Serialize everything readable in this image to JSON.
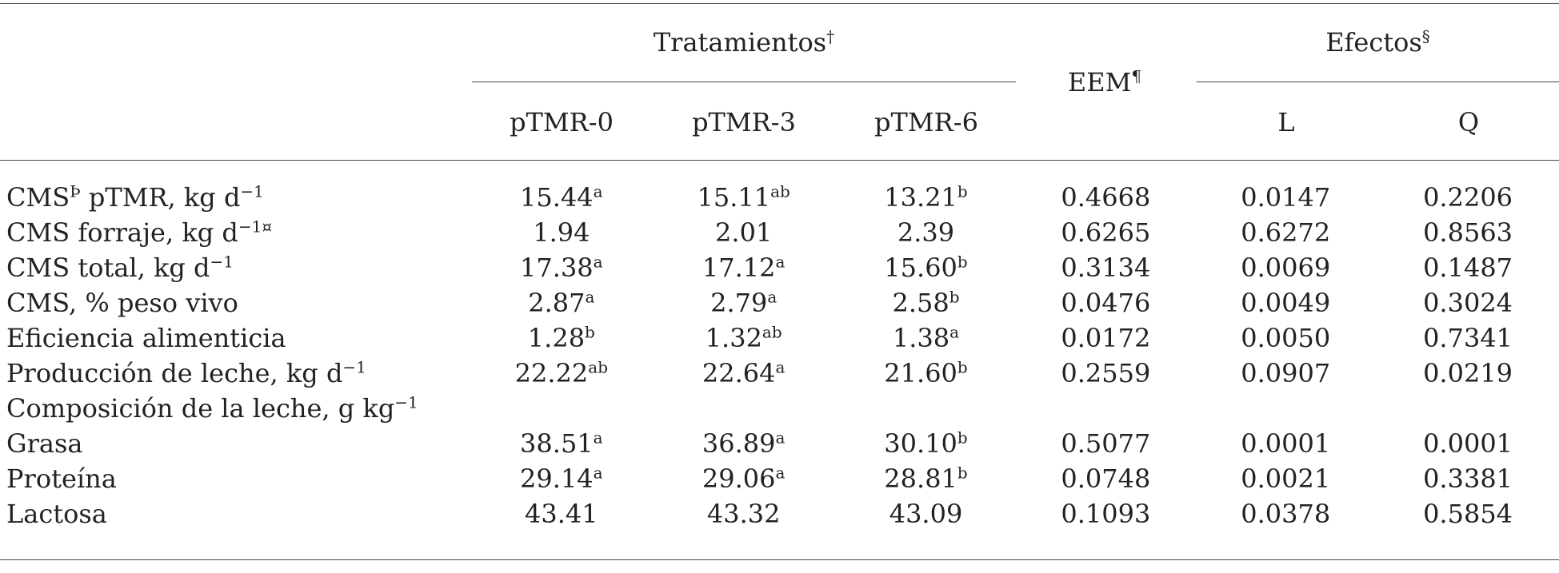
{
  "table": {
    "header": {
      "treatments_group": "Tratamientos",
      "treatments_mark": "†",
      "eem": "EEM",
      "eem_mark": "¶",
      "effects_group": "Efectos",
      "effects_mark": "§",
      "columns": [
        "pTMR-0",
        "pTMR-3",
        "pTMR-6",
        "L",
        "Q"
      ]
    },
    "rows": [
      {
        "label": "CMS",
        "label_sup": "Þ",
        "label_rest": " pTMR, kg d",
        "label_exp": "−1",
        "label_tail": "",
        "cells": [
          {
            "v": "15.44",
            "s": "a"
          },
          {
            "v": "15.11",
            "s": "ab"
          },
          {
            "v": "13.21",
            "s": "b"
          },
          {
            "v": "0.4668",
            "s": ""
          },
          {
            "v": "0.0147",
            "s": ""
          },
          {
            "v": "0.2206",
            "s": ""
          }
        ]
      },
      {
        "label": "CMS forraje, kg d",
        "label_sup": "",
        "label_rest": "",
        "label_exp": "−1¤",
        "label_tail": "",
        "cells": [
          {
            "v": "1.94",
            "s": ""
          },
          {
            "v": "2.01",
            "s": ""
          },
          {
            "v": "2.39",
            "s": ""
          },
          {
            "v": "0.6265",
            "s": ""
          },
          {
            "v": "0.6272",
            "s": ""
          },
          {
            "v": "0.8563",
            "s": ""
          }
        ]
      },
      {
        "label": "CMS total, kg d",
        "label_sup": "",
        "label_rest": "",
        "label_exp": "−1",
        "label_tail": "",
        "cells": [
          {
            "v": "17.38",
            "s": "a"
          },
          {
            "v": "17.12",
            "s": "a"
          },
          {
            "v": "15.60",
            "s": "b"
          },
          {
            "v": "0.3134",
            "s": ""
          },
          {
            "v": "0.0069",
            "s": ""
          },
          {
            "v": "0.1487",
            "s": ""
          }
        ]
      },
      {
        "label": "CMS, % peso vivo",
        "label_sup": "",
        "label_rest": "",
        "label_exp": "",
        "label_tail": "",
        "cells": [
          {
            "v": "2.87",
            "s": "a"
          },
          {
            "v": "2.79",
            "s": "a"
          },
          {
            "v": "2.58",
            "s": "b"
          },
          {
            "v": "0.0476",
            "s": ""
          },
          {
            "v": "0.0049",
            "s": ""
          },
          {
            "v": "0.3024",
            "s": ""
          }
        ]
      },
      {
        "label": "Eficiencia alimenticia",
        "label_sup": "",
        "label_rest": "",
        "label_exp": "",
        "label_tail": "",
        "cells": [
          {
            "v": "1.28",
            "s": "b"
          },
          {
            "v": "1.32",
            "s": "ab"
          },
          {
            "v": "1.38",
            "s": "a"
          },
          {
            "v": "0.0172",
            "s": ""
          },
          {
            "v": "0.0050",
            "s": ""
          },
          {
            "v": "0.7341",
            "s": ""
          }
        ]
      },
      {
        "label": "Producción de leche, kg d",
        "label_sup": "",
        "label_rest": "",
        "label_exp": "−1",
        "label_tail": "",
        "cells": [
          {
            "v": "22.22",
            "s": "ab"
          },
          {
            "v": "22.64",
            "s": "a"
          },
          {
            "v": "21.60",
            "s": "b"
          },
          {
            "v": "0.2559",
            "s": ""
          },
          {
            "v": "0.0907",
            "s": ""
          },
          {
            "v": "0.0219",
            "s": ""
          }
        ]
      },
      {
        "label": "Composición de la leche, g kg",
        "label_sup": "",
        "label_rest": "",
        "label_exp": "−1",
        "label_tail": "",
        "cells": [
          {
            "v": "",
            "s": ""
          },
          {
            "v": "",
            "s": ""
          },
          {
            "v": "",
            "s": ""
          },
          {
            "v": "",
            "s": ""
          },
          {
            "v": "",
            "s": ""
          },
          {
            "v": "",
            "s": ""
          }
        ]
      },
      {
        "label": "Grasa",
        "label_sup": "",
        "label_rest": "",
        "label_exp": "",
        "label_tail": "",
        "cells": [
          {
            "v": "38.51",
            "s": "a"
          },
          {
            "v": "36.89",
            "s": "a"
          },
          {
            "v": "30.10",
            "s": "b"
          },
          {
            "v": "0.5077",
            "s": ""
          },
          {
            "v": "0.0001",
            "s": ""
          },
          {
            "v": "0.0001",
            "s": ""
          }
        ]
      },
      {
        "label": "Proteína",
        "label_sup": "",
        "label_rest": "",
        "label_exp": "",
        "label_tail": "",
        "cells": [
          {
            "v": "29.14",
            "s": "a"
          },
          {
            "v": "29.06",
            "s": "a"
          },
          {
            "v": "28.81",
            "s": "b"
          },
          {
            "v": "0.0748",
            "s": ""
          },
          {
            "v": "0.0021",
            "s": ""
          },
          {
            "v": "0.3381",
            "s": ""
          }
        ]
      },
      {
        "label": "Lactosa",
        "label_sup": "",
        "label_rest": "",
        "label_exp": "",
        "label_tail": "",
        "cells": [
          {
            "v": "43.41",
            "s": ""
          },
          {
            "v": "43.32",
            "s": ""
          },
          {
            "v": "43.09",
            "s": ""
          },
          {
            "v": "0.1093",
            "s": ""
          },
          {
            "v": "0.0378",
            "s": ""
          },
          {
            "v": "0.5854",
            "s": ""
          }
        ]
      }
    ]
  }
}
